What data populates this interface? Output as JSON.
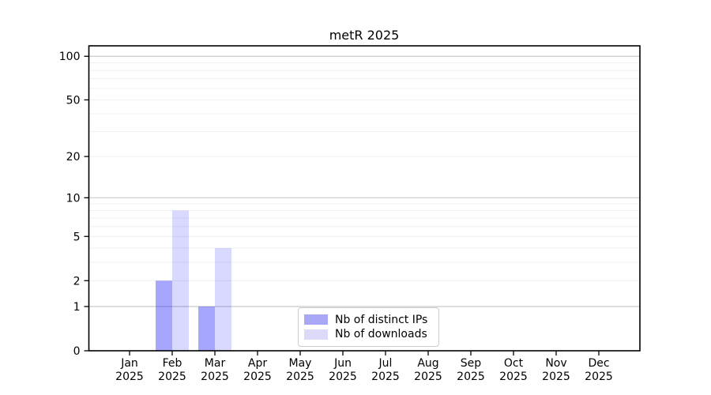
{
  "chart_data": {
    "type": "bar",
    "title": "metR 2025",
    "x_categories": [
      "Jan",
      "Feb",
      "Mar",
      "Apr",
      "May",
      "Jun",
      "Jul",
      "Aug",
      "Sep",
      "Oct",
      "Nov",
      "Dec"
    ],
    "x_year": "2025",
    "series": [
      {
        "name": "Nb of distinct IPs",
        "color": "#0000ff",
        "alpha": 0.35,
        "composite_hex": "#a8a8f6",
        "values": [
          0,
          2,
          1,
          0,
          0,
          0,
          0,
          0,
          0,
          0,
          0,
          0
        ]
      },
      {
        "name": "Nb of downloads",
        "color": "#0000ff",
        "alpha": 0.15,
        "composite_hex": "#dbdbf9",
        "values": [
          0,
          8,
          4,
          0,
          0,
          0,
          0,
          0,
          0,
          0,
          0,
          0
        ]
      }
    ],
    "xlabel": "",
    "ylabel": "",
    "yscale": "log1p",
    "ylim": [
      0,
      118
    ],
    "yticks": [
      0,
      1,
      2,
      5,
      10,
      20,
      50,
      100
    ],
    "grid": {
      "axis": "y",
      "major_values": [
        1,
        10,
        100
      ],
      "minor_values": [
        2,
        3,
        4,
        5,
        6,
        7,
        8,
        9,
        20,
        30,
        40,
        50,
        60,
        70,
        80,
        90
      ],
      "major_color": "#c9c9c9",
      "minor_color": "#efefef"
    },
    "legend": {
      "location": "inside-bottom-center",
      "entries": [
        "Nb of distinct IPs",
        "Nb of downloads"
      ]
    },
    "axis_color": "#000000",
    "tick_label_color": "#000000"
  }
}
